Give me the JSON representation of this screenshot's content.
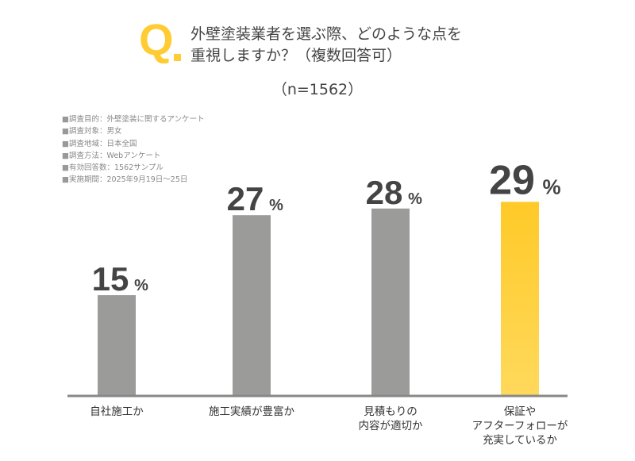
{
  "header": {
    "q_mark": "Q.",
    "question": "外壁塗装業者を選ぶ際、どのような点を\n重視しますか？（複数回答可）",
    "sample": "（n=1562）"
  },
  "notes": [
    "調査目的：外壁塗装に関するアンケート",
    "調査対象：男女",
    "調査地域：日本全国",
    "調査方法：Webアンケート",
    "有効回答数：1562サンプル",
    "実施期間：2025年9月19日～25日"
  ],
  "chart_data": {
    "type": "bar",
    "categories": [
      "自社施工か",
      "施工実績が豊富か",
      "見積もりの\n内容が適切か",
      "保証や\nアフターフォローが\n充実しているか"
    ],
    "values": [
      15,
      27,
      28,
      29
    ],
    "unit": "%",
    "highlight_index": 3,
    "colors": {
      "default": "#9B9B99",
      "highlight": "#FFCA28",
      "highlight_light": "#FFD95C",
      "axis": "#888888",
      "label": "#444444"
    },
    "ylim": [
      0,
      30
    ],
    "grid": false
  }
}
